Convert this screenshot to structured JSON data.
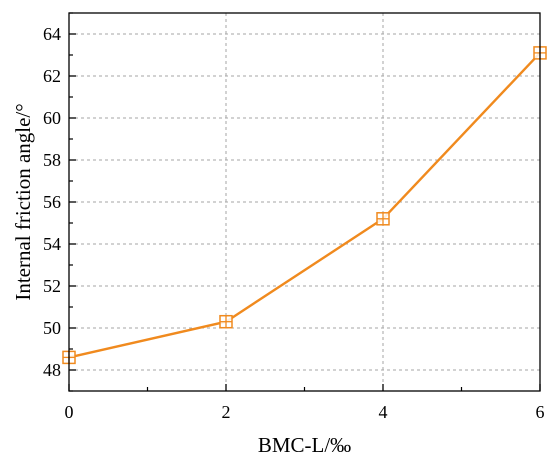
{
  "chart_data": {
    "type": "line",
    "x": [
      0,
      2,
      4,
      6
    ],
    "y": [
      48.6,
      50.3,
      55.2,
      63.1
    ],
    "xlabel": "BMC-L/‰",
    "ylabel": "Internal friction angle/°",
    "xlim": [
      0,
      6
    ],
    "ylim": [
      47,
      65
    ],
    "xticks": [
      "0",
      "2",
      "4",
      "6"
    ],
    "yticks": [
      "48",
      "50",
      "52",
      "54",
      "56",
      "58",
      "60",
      "62",
      "64"
    ],
    "grid": true,
    "legend": "none",
    "marker": "square-cross",
    "line_color": "#F08A1E",
    "axis_color": "#000000",
    "grid_color": "#A6A6A6"
  }
}
